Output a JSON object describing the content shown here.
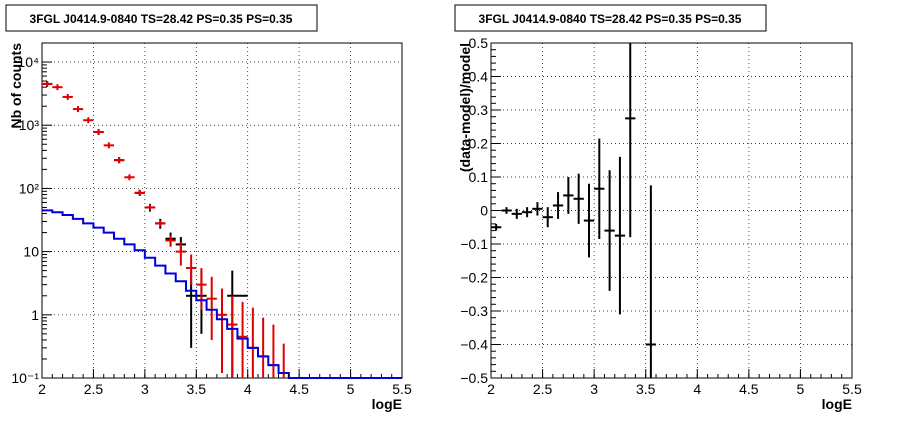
{
  "chart_data": [
    {
      "type": "scatter",
      "title": "3FGL J0414.9-0840 TS=28.42 PS=0.35 PS=0.35",
      "xlabel": "logE",
      "ylabel": "Nb of counts",
      "yscale": "log",
      "xlim": [
        2,
        5.5
      ],
      "ylim": [
        0.1,
        20000
      ],
      "grid": true,
      "x_ticks": [
        2,
        2.5,
        3,
        3.5,
        4,
        4.5,
        5,
        5.5
      ],
      "x_tick_labels": [
        "2",
        "2.5",
        "3",
        "3.5",
        "4",
        "4.5",
        "5",
        "5.5"
      ],
      "y_ticks": [
        0.1,
        1,
        10,
        100,
        1000,
        10000
      ],
      "y_tick_labels": [
        "10⁻¹",
        "1",
        "10",
        "10²",
        "10³",
        "10⁴"
      ],
      "series": [
        {
          "color": "#000000",
          "points": [
            {
              "x": 2.05,
              "y": 4500,
              "lo": 4380,
              "hi": 4620
            },
            {
              "x": 2.55,
              "y": 780,
              "lo": 750,
              "hi": 810
            },
            {
              "x": 2.75,
              "y": 280,
              "lo": 263,
              "hi": 297
            },
            {
              "x": 2.95,
              "y": 85,
              "lo": 76,
              "hi": 95
            },
            {
              "x": 3.05,
              "y": 50,
              "lo": 43,
              "hi": 57
            },
            {
              "x": 3.15,
              "y": 28,
              "lo": 23,
              "hi": 33
            },
            {
              "x": 3.25,
              "y": 16,
              "lo": 12,
              "hi": 20
            },
            {
              "x": 3.35,
              "y": 13,
              "lo": 10,
              "hi": 17
            },
            {
              "x": 3.45,
              "y": 2,
              "lo": 0.3,
              "hi": 5
            },
            {
              "x": 3.55,
              "y": 2,
              "lo": 0.5,
              "hi": 5
            },
            {
              "x": 3.85,
              "y": 2,
              "lo": 0.1,
              "hi": 5,
              "xlo": 3.8,
              "xhi": 4.0
            }
          ]
        },
        {
          "color": "#e00000",
          "points": [
            {
              "x": 2.05,
              "y": 4500
            },
            {
              "x": 2.15,
              "y": 4000
            },
            {
              "x": 2.25,
              "y": 2800
            },
            {
              "x": 2.35,
              "y": 1800
            },
            {
              "x": 2.45,
              "y": 1200
            },
            {
              "x": 2.55,
              "y": 780
            },
            {
              "x": 2.65,
              "y": 480
            },
            {
              "x": 2.75,
              "y": 280
            },
            {
              "x": 2.85,
              "y": 150
            },
            {
              "x": 2.95,
              "y": 85
            },
            {
              "x": 3.05,
              "y": 50
            },
            {
              "x": 3.15,
              "y": 28
            },
            {
              "x": 3.25,
              "y": 15,
              "lo": 12,
              "hi": 18
            },
            {
              "x": 3.35,
              "y": 10,
              "lo": 6,
              "hi": 14
            },
            {
              "x": 3.45,
              "y": 5.5,
              "lo": 3,
              "hi": 9
            },
            {
              "x": 3.55,
              "y": 3,
              "lo": 1.2,
              "hi": 5.5
            },
            {
              "x": 3.65,
              "y": 1.8,
              "lo": 0.4,
              "hi": 4
            },
            {
              "x": 3.75,
              "y": 1,
              "lo": 0.12,
              "hi": 2.6
            },
            {
              "x": 3.85,
              "y": 0.7,
              "lo": 0.1,
              "hi": 2.0
            },
            {
              "x": 3.95,
              "y": 0.45,
              "lo": 0.1,
              "hi": 1.6
            },
            {
              "x": 4.05,
              "y": 0.3,
              "lo": 0.1,
              "hi": 1.3
            },
            {
              "x": 4.15,
              "y": 0.22,
              "lo": 0.1,
              "hi": 0.9
            },
            {
              "x": 4.25,
              "y": 0.16,
              "lo": 0.1,
              "hi": 0.7
            },
            {
              "x": 4.35,
              "y": 0.12,
              "lo": 0.1,
              "hi": 0.35
            }
          ]
        },
        {
          "type": "step",
          "color": "#0000dd",
          "edges": [
            2.0,
            2.1,
            2.2,
            2.3,
            2.4,
            2.5,
            2.6,
            2.7,
            2.8,
            2.9,
            3.0,
            3.1,
            3.2,
            3.3,
            3.4,
            3.5,
            3.6,
            3.7,
            3.8,
            3.9,
            4.0,
            4.1,
            4.2,
            4.3,
            4.4,
            4.5,
            5.5
          ],
          "values": [
            45,
            42,
            38,
            33,
            28,
            24,
            20,
            16,
            13,
            10.5,
            8,
            6,
            4.5,
            3.4,
            2.4,
            1.7,
            1.2,
            0.85,
            0.6,
            0.42,
            0.3,
            0.22,
            0.16,
            0.12,
            0.1,
            0.1
          ]
        }
      ]
    },
    {
      "type": "scatter",
      "title": "3FGL J0414.9-0840 TS=28.42 PS=0.35 PS=0.35",
      "xlabel": "logE",
      "ylabel": "(data-model)/model",
      "xlim": [
        2,
        5.5
      ],
      "ylim": [
        -0.5,
        0.5
      ],
      "grid": true,
      "x_ticks": [
        2,
        2.5,
        3,
        3.5,
        4,
        4.5,
        5,
        5.5
      ],
      "x_tick_labels": [
        "2",
        "2.5",
        "3",
        "3.5",
        "4",
        "4.5",
        "5",
        "5.5"
      ],
      "y_ticks": [
        -0.5,
        -0.4,
        -0.3,
        -0.2,
        -0.1,
        0,
        0.1,
        0.2,
        0.3,
        0.4,
        0.5
      ],
      "y_tick_labels": [
        "−0.5",
        "−0.4",
        "−0.3",
        "−0.2",
        "−0.1",
        "0",
        "0.1",
        "0.2",
        "0.3",
        "0.4",
        "0.5"
      ],
      "series": [
        {
          "color": "#000000",
          "points": [
            {
              "x": 2.05,
              "y": -0.05,
              "lo": -0.06,
              "hi": -0.04
            },
            {
              "x": 2.15,
              "y": 0.0,
              "lo": -0.01,
              "hi": 0.01
            },
            {
              "x": 2.25,
              "y": -0.01,
              "lo": -0.025,
              "hi": 0.005
            },
            {
              "x": 2.35,
              "y": -0.005,
              "lo": -0.02,
              "hi": 0.01
            },
            {
              "x": 2.45,
              "y": 0.005,
              "lo": -0.015,
              "hi": 0.025
            },
            {
              "x": 2.55,
              "y": -0.02,
              "lo": -0.05,
              "hi": 0.01
            },
            {
              "x": 2.65,
              "y": 0.015,
              "lo": -0.025,
              "hi": 0.055
            },
            {
              "x": 2.75,
              "y": 0.045,
              "lo": -0.01,
              "hi": 0.1
            },
            {
              "x": 2.85,
              "y": 0.035,
              "lo": -0.04,
              "hi": 0.11
            },
            {
              "x": 2.95,
              "y": -0.03,
              "lo": -0.14,
              "hi": 0.08
            },
            {
              "x": 3.05,
              "y": 0.065,
              "lo": -0.085,
              "hi": 0.215
            },
            {
              "x": 3.15,
              "y": -0.06,
              "lo": -0.24,
              "hi": 0.12
            },
            {
              "x": 3.25,
              "y": -0.075,
              "lo": -0.31,
              "hi": 0.16
            },
            {
              "x": 3.35,
              "y": 0.275,
              "lo": -0.08,
              "hi": 0.5
            },
            {
              "x": 3.55,
              "y": -0.4,
              "lo": -0.5,
              "hi": 0.075
            }
          ]
        }
      ]
    }
  ]
}
